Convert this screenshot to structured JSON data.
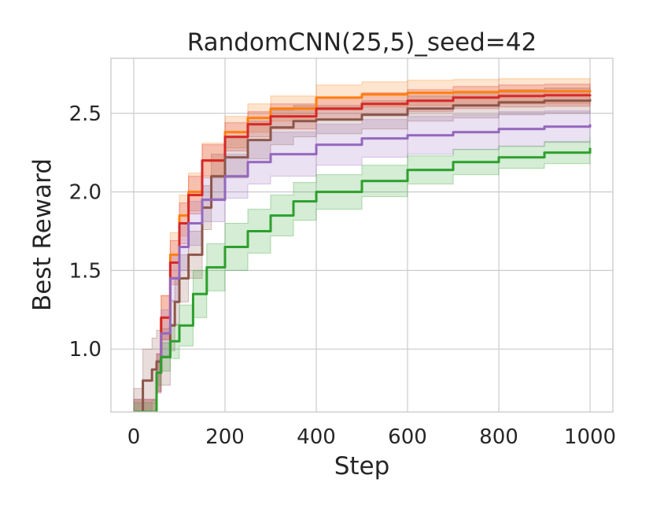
{
  "chart_data": {
    "type": "line",
    "title": "RandomCNN(25,5)_seed=42",
    "xlabel": "Step",
    "ylabel": "Best Reward",
    "xlim": [
      -50,
      1050
    ],
    "ylim": [
      0.6,
      2.85
    ],
    "xticks": [
      0,
      200,
      400,
      600,
      800,
      1000
    ],
    "xtick_labels": [
      "0",
      "200",
      "400",
      "600",
      "800",
      "1000"
    ],
    "yticks": [
      1.0,
      1.5,
      2.0,
      2.5
    ],
    "ytick_labels": [
      "1.0",
      "1.5",
      "2.0",
      "2.5"
    ],
    "grid": true,
    "legend": "none",
    "shaded_band": "variability band around each line",
    "series": [
      {
        "color": "#ff7f0e",
        "x": [
          0,
          50,
          60,
          80,
          100,
          120,
          150,
          200,
          250,
          300,
          400,
          500,
          600,
          700,
          800,
          900,
          1000
        ],
        "y": [
          0.6,
          0.85,
          1.2,
          1.6,
          1.85,
          2.0,
          2.2,
          2.38,
          2.47,
          2.53,
          2.6,
          2.62,
          2.63,
          2.635,
          2.64,
          2.64,
          2.645
        ],
        "band": [
          0.08,
          0.12,
          0.14,
          0.14,
          0.13,
          0.12,
          0.11,
          0.1,
          0.09,
          0.08,
          0.08,
          0.08,
          0.08,
          0.08,
          0.08,
          0.08,
          0.08
        ]
      },
      {
        "color": "#d62728",
        "x": [
          0,
          50,
          60,
          80,
          100,
          120,
          150,
          200,
          250,
          300,
          400,
          500,
          600,
          700,
          800,
          900,
          1000
        ],
        "y": [
          0.6,
          0.85,
          1.2,
          1.55,
          1.8,
          1.98,
          2.2,
          2.35,
          2.43,
          2.48,
          2.53,
          2.56,
          2.58,
          2.6,
          2.61,
          2.615,
          2.62
        ],
        "band": [
          0.08,
          0.12,
          0.14,
          0.14,
          0.13,
          0.12,
          0.1,
          0.09,
          0.08,
          0.08,
          0.07,
          0.07,
          0.07,
          0.07,
          0.07,
          0.07,
          0.07
        ]
      },
      {
        "color": "#8c564b",
        "x": [
          0,
          20,
          40,
          50,
          60,
          80,
          90,
          100,
          120,
          150,
          170,
          200,
          250,
          300,
          350,
          400,
          500,
          600,
          700,
          800,
          900,
          1000
        ],
        "y": [
          0.6,
          0.8,
          0.87,
          0.92,
          0.95,
          1.15,
          1.3,
          1.45,
          1.6,
          1.9,
          2.1,
          2.22,
          2.33,
          2.41,
          2.45,
          2.46,
          2.49,
          2.53,
          2.55,
          2.57,
          2.58,
          2.59
        ],
        "band": [
          0.15,
          0.2,
          0.2,
          0.2,
          0.18,
          0.16,
          0.15,
          0.15,
          0.15,
          0.14,
          0.14,
          0.13,
          0.12,
          0.11,
          0.1,
          0.09,
          0.09,
          0.08,
          0.08,
          0.08,
          0.08,
          0.08
        ]
      },
      {
        "color": "#9467bd",
        "x": [
          0,
          50,
          60,
          80,
          100,
          120,
          150,
          200,
          250,
          300,
          400,
          500,
          600,
          700,
          800,
          900,
          1000
        ],
        "y": [
          0.6,
          0.85,
          1.1,
          1.45,
          1.65,
          1.8,
          1.95,
          2.1,
          2.19,
          2.24,
          2.3,
          2.34,
          2.36,
          2.38,
          2.4,
          2.415,
          2.43
        ],
        "band": [
          0.08,
          0.12,
          0.15,
          0.15,
          0.15,
          0.14,
          0.14,
          0.14,
          0.14,
          0.14,
          0.13,
          0.12,
          0.12,
          0.11,
          0.11,
          0.1,
          0.1
        ]
      },
      {
        "color": "#2ca02c",
        "x": [
          0,
          50,
          60,
          80,
          100,
          130,
          160,
          200,
          250,
          300,
          350,
          400,
          500,
          600,
          700,
          800,
          900,
          1000
        ],
        "y": [
          0.6,
          0.85,
          0.95,
          1.05,
          1.15,
          1.35,
          1.52,
          1.65,
          1.75,
          1.85,
          1.94,
          2.0,
          2.07,
          2.14,
          2.19,
          2.22,
          2.25,
          2.28
        ],
        "band": [
          0.06,
          0.08,
          0.09,
          0.11,
          0.13,
          0.15,
          0.15,
          0.15,
          0.14,
          0.13,
          0.12,
          0.11,
          0.1,
          0.09,
          0.08,
          0.07,
          0.07,
          0.07
        ]
      }
    ]
  }
}
